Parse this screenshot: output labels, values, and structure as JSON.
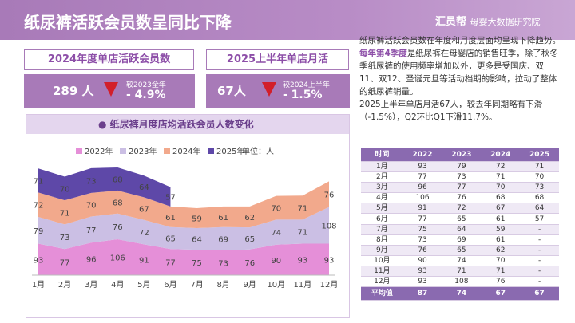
{
  "header": {
    "title": "纸尿裤活跃会员数呈同比下降",
    "logo": "汇员帮",
    "logo_sub": "母婴大数据研究院"
  },
  "kpis": [
    {
      "label": "2024年度单店活跃会员数",
      "value": "289 人",
      "change_label": "较2023全年",
      "change": "- 4.9%"
    },
    {
      "label": "2025上半年单店月活",
      "value": "67人",
      "change_label": "较2024上半年",
      "change": "- 1.5%"
    }
  ],
  "paragraphs": [
    [
      "纸尿裤活跃会员数在年度和月度层面均呈现下降趋势。",
      "每年第4季度",
      "是纸尿裤在母婴店的销售旺季，除了秋冬季纸尿裤的使用频率增加以外，更多是受国庆、双11、双12、圣诞元旦等活动档期的影响，拉动了整体的纸尿裤销量。"
    ],
    [
      "2025上半年单店月活67人，较去年同期略有下滑（-1.5%），Q2环比Q1下滑11.7%。"
    ]
  ],
  "table": {
    "header": [
      "时间",
      "2022",
      "2023",
      "2024",
      "2025"
    ],
    "rows": [
      [
        "1月",
        93,
        79,
        72,
        71
      ],
      [
        "2月",
        77,
        73,
        71,
        70
      ],
      [
        "3月",
        96,
        77,
        70,
        73
      ],
      [
        "4月",
        106,
        76,
        68,
        68
      ],
      [
        "5月",
        91,
        72,
        67,
        64
      ],
      [
        "6月",
        77,
        65,
        61,
        57
      ],
      [
        "7月",
        75,
        64,
        59,
        "-"
      ],
      [
        "8月",
        73,
        69,
        61,
        "-"
      ],
      [
        "9月",
        76,
        65,
        62,
        "-"
      ],
      [
        "10月",
        90,
        74,
        70,
        "-"
      ],
      [
        "11月",
        93,
        71,
        71,
        "-"
      ],
      [
        "12月",
        93,
        108,
        76,
        "-"
      ],
      [
        "平均值",
        87,
        74,
        67,
        67
      ]
    ]
  },
  "chart_data": {
    "type": "stacked_area",
    "title": "● 纸尿裤月度店均活跃会员人数变化",
    "unit": "单位：人",
    "categories": [
      "1月",
      "2月",
      "3月",
      "4月",
      "5月",
      "6月",
      "7月",
      "8月",
      "9月",
      "10月",
      "11月",
      "12月"
    ],
    "series": [
      {
        "name": "2022年",
        "color": "#e58fd8",
        "values": [
          93,
          77,
          96,
          106,
          91,
          77,
          75,
          73,
          76,
          90,
          93,
          93
        ]
      },
      {
        "name": "2023年",
        "color": "#cbbfe4",
        "values": [
          79,
          73,
          77,
          76,
          72,
          65,
          64,
          69,
          65,
          74,
          71,
          108
        ]
      },
      {
        "name": "2024年",
        "color": "#f2a98c",
        "values": [
          72,
          71,
          70,
          68,
          67,
          61,
          59,
          61,
          62,
          70,
          71,
          76
        ]
      },
      {
        "name": "2025年",
        "color": "#5e48a8",
        "values": [
          71,
          70,
          73,
          68,
          64,
          57,
          null,
          null,
          null,
          null,
          null,
          null
        ]
      }
    ]
  }
}
